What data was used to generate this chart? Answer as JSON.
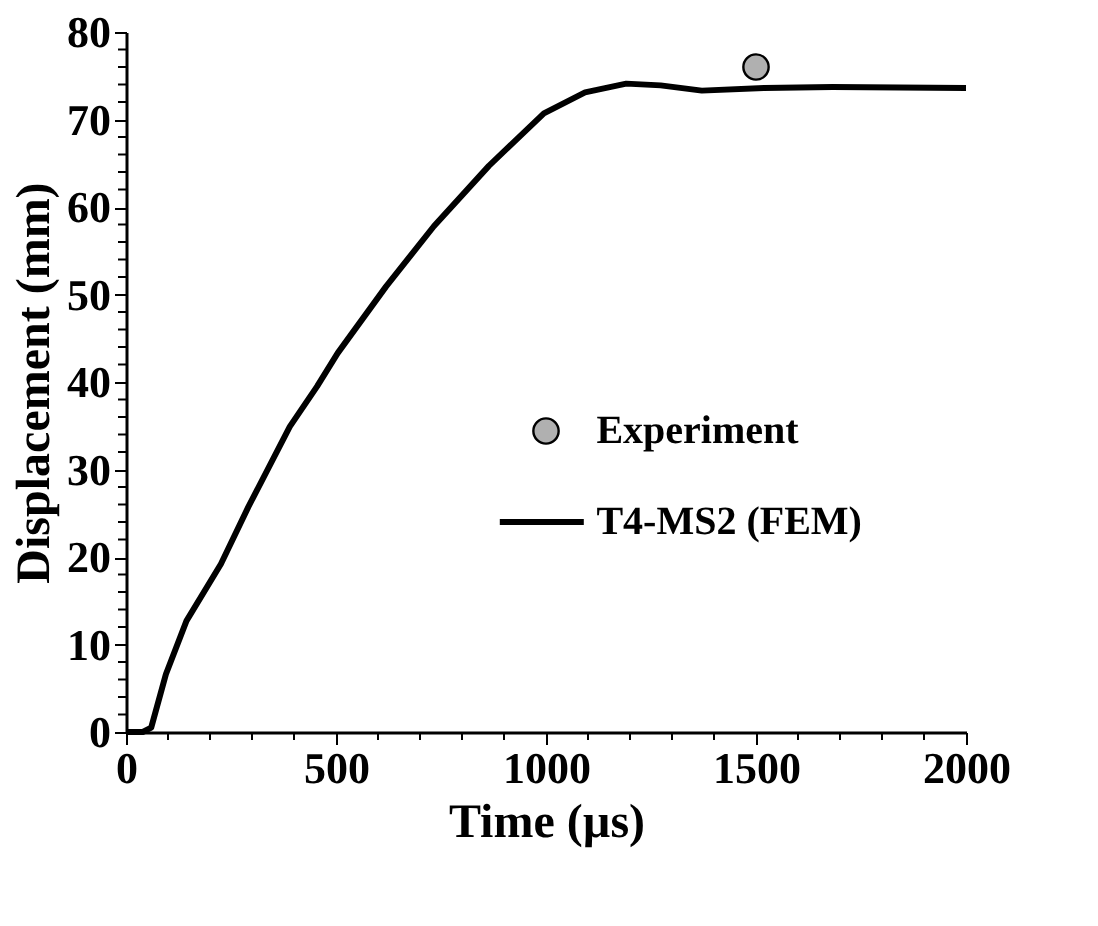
{
  "chart_data": {
    "type": "line",
    "xlabel": "Time (µs)",
    "ylabel": "Displacement (mm)",
    "xlim": [
      0,
      2000
    ],
    "ylim": [
      0,
      80
    ],
    "xticks": [
      0,
      {
        "value": 100,
        "label": null
      },
      {
        "value": 200,
        "label": null
      },
      {
        "value": 300,
        "label": null
      },
      {
        "value": 400,
        "label": null
      },
      500,
      {
        "value": 600,
        "label": null
      },
      {
        "value": 700,
        "label": null
      },
      {
        "value": 800,
        "label": null
      },
      {
        "value": 900,
        "label": null
      },
      1000,
      {
        "value": 1100,
        "label": null
      },
      {
        "value": 1200,
        "label": null
      },
      {
        "value": 1300,
        "label": null
      },
      {
        "value": 1400,
        "label": null
      },
      1500,
      {
        "value": 1600,
        "label": null
      },
      {
        "value": 1700,
        "label": null
      },
      {
        "value": 1800,
        "label": null
      },
      {
        "value": 1900,
        "label": null
      },
      2000
    ],
    "yticks": [
      0,
      {
        "value": 2,
        "label": null
      },
      {
        "value": 4,
        "label": null
      },
      {
        "value": 6,
        "label": null
      },
      {
        "value": 8,
        "label": null
      },
      10,
      {
        "value": 12,
        "label": null
      },
      {
        "value": 14,
        "label": null
      },
      {
        "value": 16,
        "label": null
      },
      {
        "value": 18,
        "label": null
      },
      20,
      {
        "value": 22,
        "label": null
      },
      {
        "value": 24,
        "label": null
      },
      {
        "value": 26,
        "label": null
      },
      {
        "value": 28,
        "label": null
      },
      30,
      {
        "value": 32,
        "label": null
      },
      {
        "value": 34,
        "label": null
      },
      {
        "value": 36,
        "label": null
      },
      {
        "value": 38,
        "label": null
      },
      40,
      {
        "value": 42,
        "label": null
      },
      {
        "value": 44,
        "label": null
      },
      {
        "value": 46,
        "label": null
      },
      {
        "value": 48,
        "label": null
      },
      50,
      {
        "value": 52,
        "label": null
      },
      {
        "value": 54,
        "label": null
      },
      {
        "value": 56,
        "label": null
      },
      {
        "value": 58,
        "label": null
      },
      60,
      {
        "value": 62,
        "label": null
      },
      {
        "value": 64,
        "label": null
      },
      {
        "value": 66,
        "label": null
      },
      {
        "value": 68,
        "label": null
      },
      70,
      {
        "value": 72,
        "label": null
      },
      {
        "value": 74,
        "label": null
      },
      {
        "value": 76,
        "label": null
      },
      {
        "value": 78,
        "label": null
      },
      80
    ],
    "grid": false,
    "legend": "right",
    "series": [
      {
        "name": "Experiment",
        "type": "scatter",
        "marker": "circle",
        "color": "#b0b0b0",
        "x": [
          1500
        ],
        "values": [
          76
        ]
      },
      {
        "name": "T4-MS2 (FEM)",
        "marker": "none",
        "line_style": "solid",
        "color": "#000000",
        "x": [
          0,
          40,
          60,
          95,
          144,
          226,
          291,
          390,
          455,
          504,
          619,
          733,
          864,
          995,
          1093,
          1191,
          1273,
          1371,
          1519,
          1682,
          2000
        ],
        "values": [
          0,
          0,
          0.5,
          6.6,
          12.7,
          19.2,
          25.7,
          34.9,
          39.5,
          43.3,
          50.9,
          57.8,
          64.7,
          70.7,
          73.1,
          74.1,
          73.9,
          73.3,
          73.6,
          73.7,
          73.6
        ]
      }
    ]
  }
}
